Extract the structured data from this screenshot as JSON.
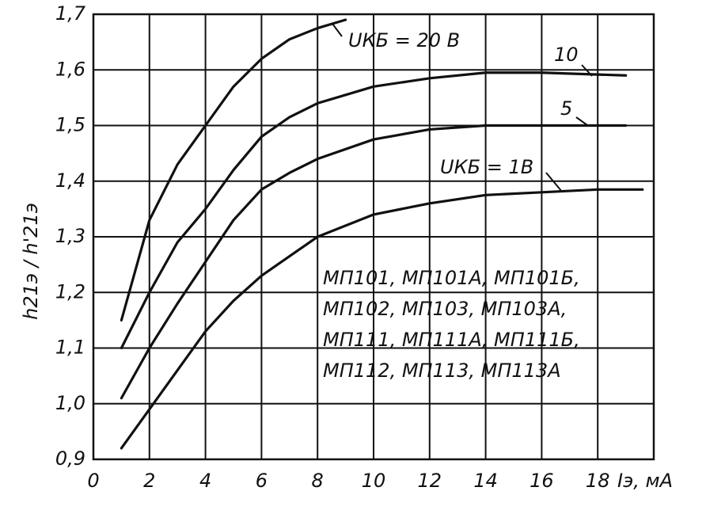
{
  "chart_data": {
    "type": "line",
    "ylabel": "h21э / h'21э",
    "xlabel": "Iэ, мА",
    "xlim": [
      0,
      20
    ],
    "xticks": [
      0,
      2,
      4,
      6,
      8,
      10,
      12,
      14,
      16,
      18
    ],
    "ylim": [
      0.9,
      1.7
    ],
    "yticks": [
      {
        "value": 0.9,
        "label": "0,9"
      },
      {
        "value": 1.0,
        "label": "1,0"
      },
      {
        "value": 1.1,
        "label": "1,1"
      },
      {
        "value": 1.2,
        "label": "1,2"
      },
      {
        "value": 1.3,
        "label": "1,3"
      },
      {
        "value": 1.4,
        "label": "1,4"
      },
      {
        "value": 1.5,
        "label": "1,5"
      },
      {
        "value": 1.6,
        "label": "1,6"
      },
      {
        "value": 1.7,
        "label": "1,7"
      }
    ],
    "grid": true,
    "series": [
      {
        "name": "UКБ = 20 В",
        "color": "#111111",
        "x": [
          1,
          2,
          3,
          4,
          5,
          6,
          7,
          8,
          9
        ],
        "values": [
          1.15,
          1.33,
          1.43,
          1.5,
          1.57,
          1.62,
          1.655,
          1.675,
          1.69
        ]
      },
      {
        "name": "10",
        "color": "#111111",
        "x": [
          1,
          2,
          3,
          4,
          5,
          6,
          7,
          8,
          10,
          12,
          14,
          16,
          19
        ],
        "values": [
          1.1,
          1.2,
          1.29,
          1.35,
          1.42,
          1.48,
          1.515,
          1.54,
          1.57,
          1.585,
          1.595,
          1.595,
          1.59
        ]
      },
      {
        "name": "5",
        "color": "#111111",
        "x": [
          1,
          2,
          3,
          4,
          5,
          6,
          7,
          8,
          10,
          12,
          14,
          16,
          19
        ],
        "values": [
          1.01,
          1.1,
          1.18,
          1.255,
          1.33,
          1.385,
          1.415,
          1.44,
          1.475,
          1.493,
          1.5,
          1.5,
          1.5
        ]
      },
      {
        "name": "UКБ = 1В",
        "color": "#111111",
        "x": [
          1,
          2,
          3,
          4,
          5,
          6,
          7,
          8,
          10,
          12,
          14,
          16,
          18,
          19.6
        ],
        "values": [
          0.92,
          0.99,
          1.06,
          1.13,
          1.185,
          1.23,
          1.265,
          1.3,
          1.34,
          1.36,
          1.375,
          1.38,
          1.385,
          1.385
        ]
      }
    ],
    "annotations": [
      "МП101, МП101А, МП101Б,",
      "МП102, МП103, МП103А,",
      "МП111, МП111А, МП111Б,",
      "МП112, МП113, МП113А"
    ]
  }
}
